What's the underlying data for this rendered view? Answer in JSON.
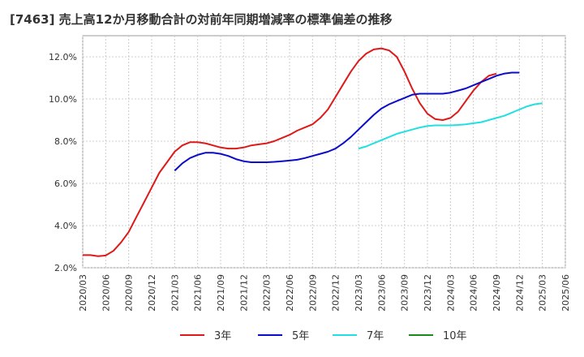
{
  "chart_data": {
    "type": "line",
    "title": "[7463]  売上高12か月移動合計の対前年同期増減率の標準偏差の推移",
    "xlabel": "",
    "ylabel": "",
    "ylim": [
      2.0,
      13.0
    ],
    "yticks": [
      "2.0%",
      "4.0%",
      "6.0%",
      "8.0%",
      "10.0%",
      "12.0%"
    ],
    "ytick_values": [
      2,
      4,
      6,
      8,
      10,
      12
    ],
    "xticks": [
      "2020/03",
      "2020/06",
      "2020/09",
      "2020/12",
      "2021/03",
      "2021/06",
      "2021/09",
      "2021/12",
      "2022/03",
      "2022/06",
      "2022/09",
      "2022/12",
      "2023/03",
      "2023/06",
      "2023/09",
      "2023/12",
      "2024/03",
      "2024/06",
      "2024/09",
      "2024/12",
      "2025/03",
      "2025/06"
    ],
    "grid": true,
    "legend_position": "bottom",
    "series": [
      {
        "name": "3年",
        "color": "#dd1a1a",
        "x_start": "2020/03",
        "values": [
          2.6,
          2.6,
          2.55,
          2.58,
          2.8,
          3.2,
          3.7,
          4.4,
          5.1,
          5.8,
          6.5,
          7.0,
          7.5,
          7.8,
          7.95,
          7.95,
          7.9,
          7.8,
          7.7,
          7.65,
          7.65,
          7.7,
          7.8,
          7.85,
          7.9,
          8.0,
          8.15,
          8.3,
          8.5,
          8.65,
          8.8,
          9.1,
          9.5,
          10.1,
          10.7,
          11.3,
          11.8,
          12.15,
          12.35,
          12.4,
          12.3,
          12.0,
          11.3,
          10.5,
          9.8,
          9.3,
          9.05,
          9.0,
          9.1,
          9.4,
          9.9,
          10.4,
          10.8,
          11.1,
          11.2
        ]
      },
      {
        "name": "5年",
        "color": "#0b0bc8",
        "x_start": "2021/03",
        "values": [
          6.6,
          6.95,
          7.2,
          7.35,
          7.45,
          7.45,
          7.4,
          7.3,
          7.15,
          7.05,
          7.0,
          7.0,
          7.0,
          7.02,
          7.05,
          7.08,
          7.12,
          7.2,
          7.3,
          7.4,
          7.5,
          7.65,
          7.9,
          8.2,
          8.55,
          8.9,
          9.25,
          9.55,
          9.75,
          9.9,
          10.05,
          10.2,
          10.25,
          10.25,
          10.25,
          10.25,
          10.3,
          10.4,
          10.5,
          10.65,
          10.8,
          10.95,
          11.1,
          11.2,
          11.25,
          11.25
        ]
      },
      {
        "name": "7年",
        "color": "#22e0e0",
        "x_start": "2023/03",
        "values": [
          7.65,
          7.75,
          7.9,
          8.05,
          8.2,
          8.35,
          8.45,
          8.55,
          8.65,
          8.72,
          8.75,
          8.75,
          8.75,
          8.77,
          8.8,
          8.85,
          8.9,
          9.0,
          9.1,
          9.2,
          9.35,
          9.5,
          9.65,
          9.75,
          9.8
        ]
      },
      {
        "name": "10年",
        "color": "#1a8a1a",
        "x_start": "2025/03",
        "values": []
      }
    ]
  }
}
